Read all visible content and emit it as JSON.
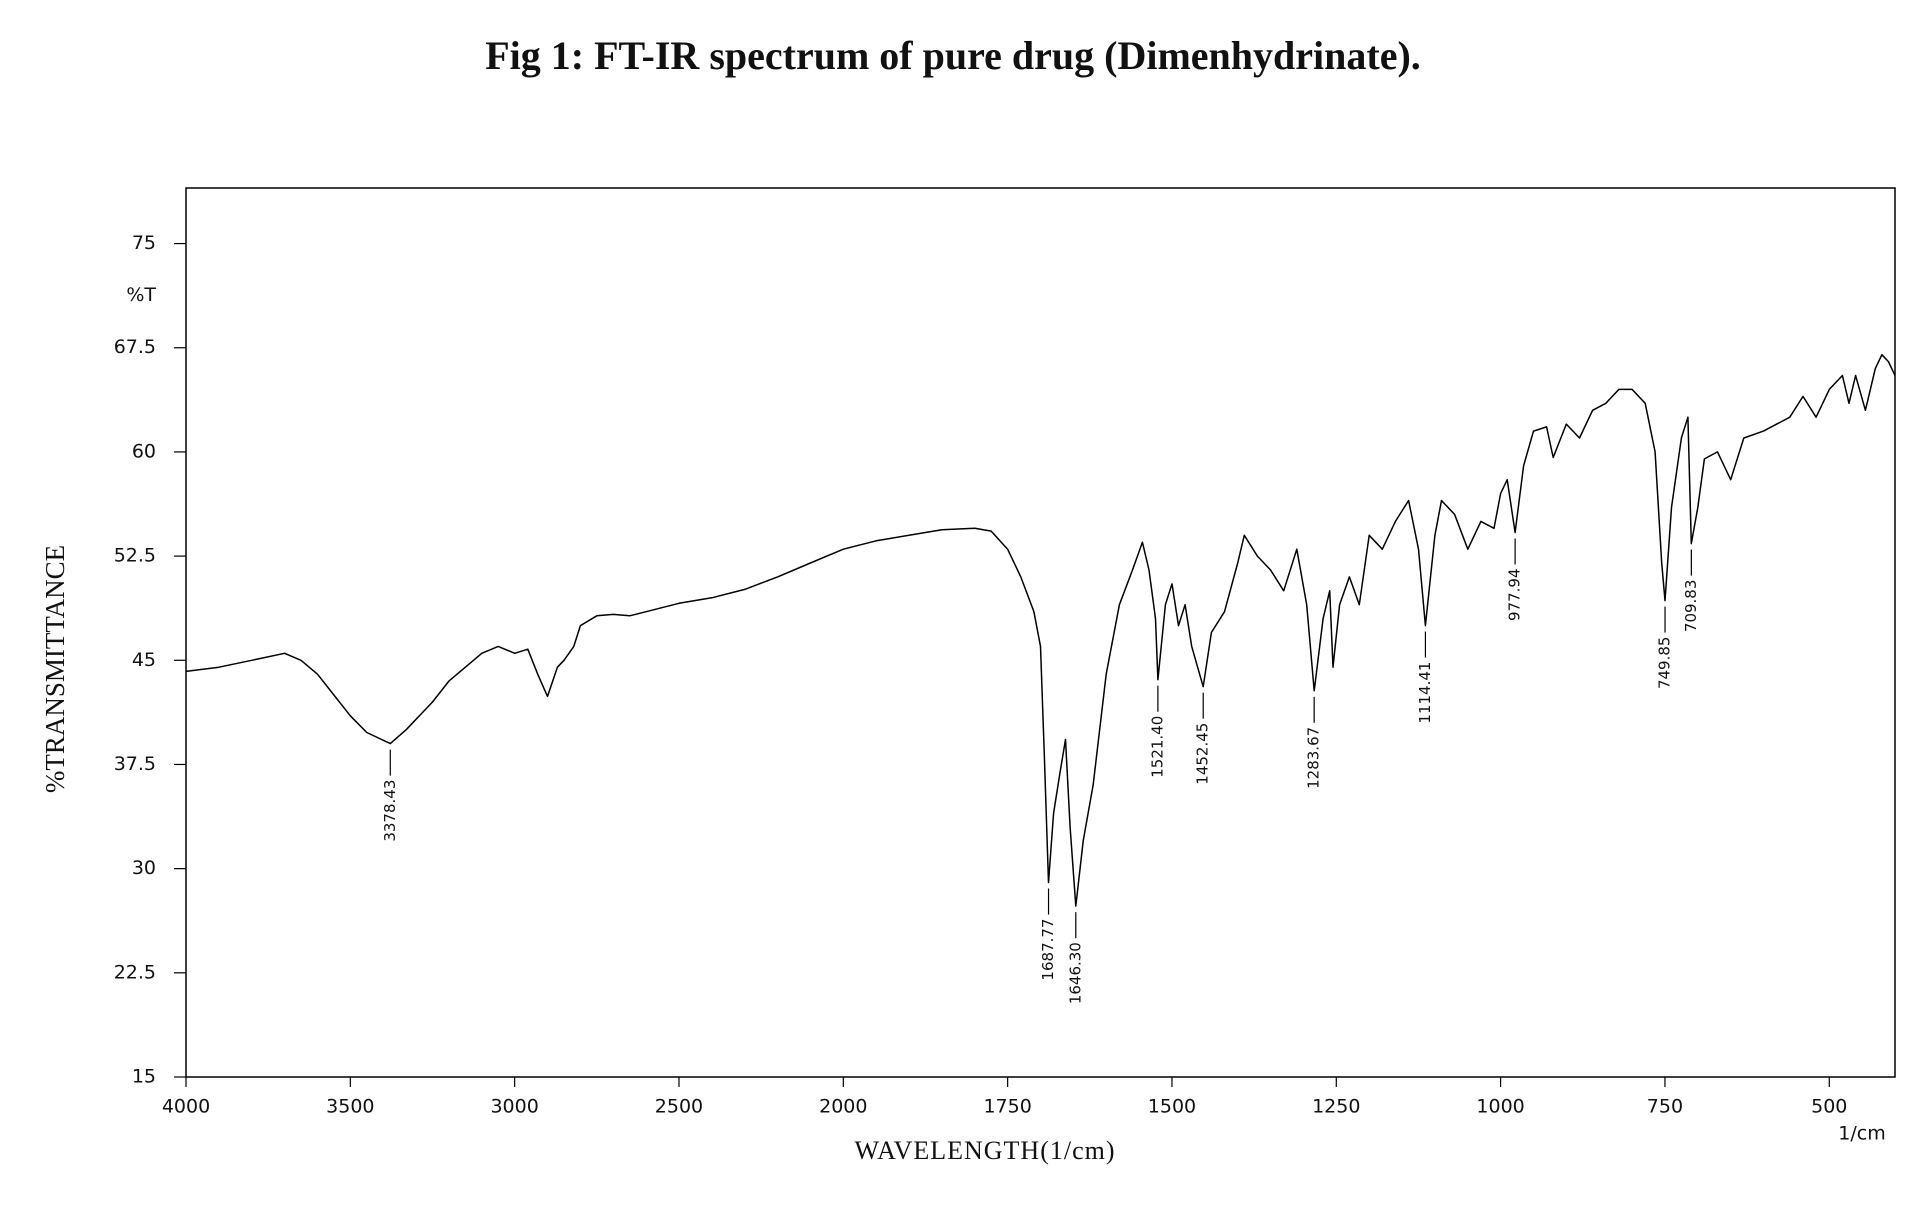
{
  "chart_data": {
    "type": "line",
    "title": "Fig 1: FT-IR spectrum of pure drug (Dimenhydrinate).",
    "x_label": "WAVELENGTH(1/cm)",
    "x_unit": "1/cm",
    "y_label": "%TRANSMITTANCE",
    "y_unit": "%T",
    "xlim": [
      4000,
      400
    ],
    "xticks": [
      4000,
      3500,
      3000,
      2500,
      2000,
      1750,
      1500,
      1250,
      1000,
      750,
      500
    ],
    "ylim": [
      15,
      79
    ],
    "yticks": [
      15,
      22.5,
      30,
      37.5,
      45,
      52.5,
      60,
      67.5,
      75
    ],
    "series": [
      {
        "color": "#000000",
        "x": [
          4000,
          3900,
          3800,
          3700,
          3650,
          3600,
          3550,
          3500,
          3450,
          3378.43,
          3330,
          3250,
          3200,
          3100,
          3050,
          3000,
          2960,
          2930,
          2900,
          2870,
          2850,
          2820,
          2800,
          2750,
          2700,
          2650,
          2600,
          2500,
          2400,
          2300,
          2200,
          2100,
          2000,
          1950,
          1900,
          1850,
          1800,
          1775,
          1750,
          1730,
          1710,
          1700,
          1694,
          1687.77,
          1680,
          1670,
          1662,
          1655,
          1646.3,
          1635,
          1620,
          1600,
          1580,
          1560,
          1545,
          1535,
          1525,
          1521.4,
          1510,
          1500,
          1490,
          1480,
          1470,
          1452.45,
          1440,
          1420,
          1400,
          1390,
          1370,
          1350,
          1330,
          1310,
          1295,
          1283.67,
          1270,
          1260,
          1255,
          1245,
          1230,
          1215,
          1200,
          1180,
          1160,
          1140,
          1125,
          1114.41,
          1100,
          1090,
          1070,
          1050,
          1030,
          1010,
          1000,
          990,
          977.94,
          965,
          950,
          930,
          920,
          900,
          880,
          860,
          840,
          820,
          800,
          780,
          765,
          755,
          749.85,
          740,
          725,
          715,
          709.83,
          700,
          690,
          670,
          650,
          630,
          600,
          580,
          560,
          540,
          520,
          500,
          480,
          470,
          460,
          445,
          430,
          420,
          410,
          400
        ],
        "values": [
          44.2,
          44.5,
          45,
          45.5,
          45,
          44,
          42.5,
          41,
          39.8,
          39,
          40,
          42,
          43.5,
          45.5,
          46,
          45.5,
          45.8,
          44,
          42.4,
          44.5,
          45,
          46,
          47.5,
          48.2,
          48.3,
          48.2,
          48.5,
          49.1,
          49.5,
          50.1,
          51,
          52,
          53,
          53.6,
          54,
          54.4,
          54.5,
          54.3,
          53,
          51,
          48.5,
          46,
          38,
          29,
          34,
          37,
          39.3,
          33,
          27.3,
          32,
          36,
          44,
          49,
          51.5,
          53.5,
          51.5,
          48,
          43.6,
          49,
          50.5,
          47.5,
          49,
          46,
          43.1,
          47,
          48.5,
          52,
          54,
          52.5,
          51.5,
          50,
          53,
          49,
          42.8,
          48,
          50,
          44.5,
          49,
          51,
          49,
          54,
          53,
          55,
          56.5,
          53,
          47.5,
          54,
          56.5,
          55.5,
          53,
          55,
          54.5,
          57,
          58,
          54.2,
          59,
          61.5,
          61.8,
          59.6,
          62,
          61,
          63,
          63.5,
          64.5,
          64.5,
          63.5,
          60,
          52,
          49.3,
          56,
          61,
          62.5,
          53.4,
          56,
          59.5,
          60,
          58,
          61,
          61.5,
          62,
          62.5,
          64,
          62.5,
          64.5,
          65.5,
          63.5,
          65.5,
          63,
          66,
          67,
          66.5,
          65.5
        ]
      }
    ],
    "peaks": [
      {
        "x": 3378.43,
        "label": "3378.43",
        "y": 39
      },
      {
        "x": 1687.77,
        "label": "1687.77",
        "y": 29
      },
      {
        "x": 1646.3,
        "label": "1646.30",
        "y": 27.3
      },
      {
        "x": 1521.4,
        "label": "1521.40",
        "y": 43.6
      },
      {
        "x": 1452.45,
        "label": "1452.45",
        "y": 43.1
      },
      {
        "x": 1283.67,
        "label": "1283.67",
        "y": 42.8
      },
      {
        "x": 1114.41,
        "label": "1114.41",
        "y": 47.5
      },
      {
        "x": 977.94,
        "label": "977.94",
        "y": 54.2
      },
      {
        "x": 749.85,
        "label": "749.85",
        "y": 49.3
      },
      {
        "x": 709.83,
        "label": "709.83",
        "y": 53.4
      }
    ]
  }
}
